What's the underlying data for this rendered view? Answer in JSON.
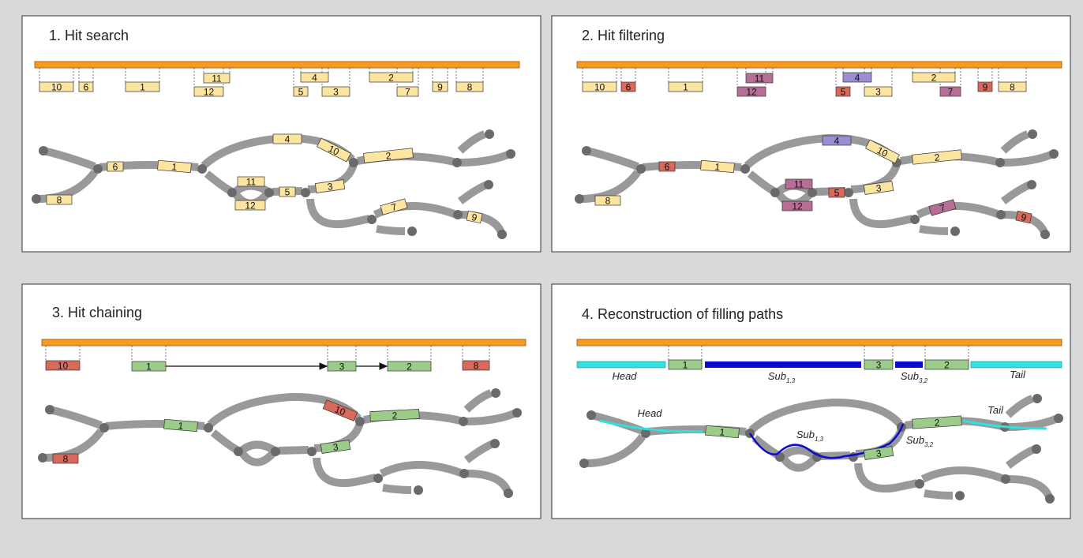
{
  "colors": {
    "background": "#d9d9d9",
    "panel": "#ffffff",
    "reference": "#f59a23",
    "hit_yellow": "#fce5a0",
    "hit_red": "#d9695a",
    "hit_purple": "#b76e96",
    "hit_violet": "#9b8fd0",
    "hit_green": "#9ccc8a",
    "gap_cyan": "#33e0e0",
    "gap_blue": "#0a0ad0",
    "graph_edge": "#999999",
    "graph_node": "#6a6a6a"
  },
  "panels": [
    {
      "title": "1. Hit search",
      "hits": [
        {
          "label": "10",
          "color": "yellow"
        },
        {
          "label": "6",
          "color": "yellow"
        },
        {
          "label": "1",
          "color": "yellow"
        },
        {
          "label": "11",
          "color": "yellow"
        },
        {
          "label": "12",
          "color": "yellow"
        },
        {
          "label": "4",
          "color": "yellow"
        },
        {
          "label": "5",
          "color": "yellow"
        },
        {
          "label": "3",
          "color": "yellow"
        },
        {
          "label": "2",
          "color": "yellow"
        },
        {
          "label": "7",
          "color": "yellow"
        },
        {
          "label": "9",
          "color": "yellow"
        },
        {
          "label": "8",
          "color": "yellow"
        }
      ]
    },
    {
      "title": "2. Hit filtering",
      "hits": [
        {
          "label": "10",
          "color": "yellow"
        },
        {
          "label": "6",
          "color": "red"
        },
        {
          "label": "1",
          "color": "yellow"
        },
        {
          "label": "11",
          "color": "purple"
        },
        {
          "label": "12",
          "color": "purple"
        },
        {
          "label": "4",
          "color": "violet"
        },
        {
          "label": "5",
          "color": "red"
        },
        {
          "label": "3",
          "color": "yellow"
        },
        {
          "label": "2",
          "color": "yellow"
        },
        {
          "label": "7",
          "color": "purple"
        },
        {
          "label": "9",
          "color": "red"
        },
        {
          "label": "8",
          "color": "yellow"
        }
      ]
    },
    {
      "title": "3. Hit chaining",
      "hits": [
        {
          "label": "10",
          "color": "red"
        },
        {
          "label": "1",
          "color": "green"
        },
        {
          "label": "3",
          "color": "green"
        },
        {
          "label": "2",
          "color": "green"
        },
        {
          "label": "8",
          "color": "red"
        }
      ]
    },
    {
      "title": "4. Reconstruction of filling paths",
      "hits": [
        {
          "label": "1",
          "color": "green"
        },
        {
          "label": "3",
          "color": "green"
        },
        {
          "label": "2",
          "color": "green"
        }
      ],
      "segments": {
        "head": "Head",
        "sub13": "Sub",
        "sub13_index": "1,3",
        "sub32": "Sub",
        "sub32_index": "3,2",
        "tail": "Tail"
      }
    }
  ]
}
